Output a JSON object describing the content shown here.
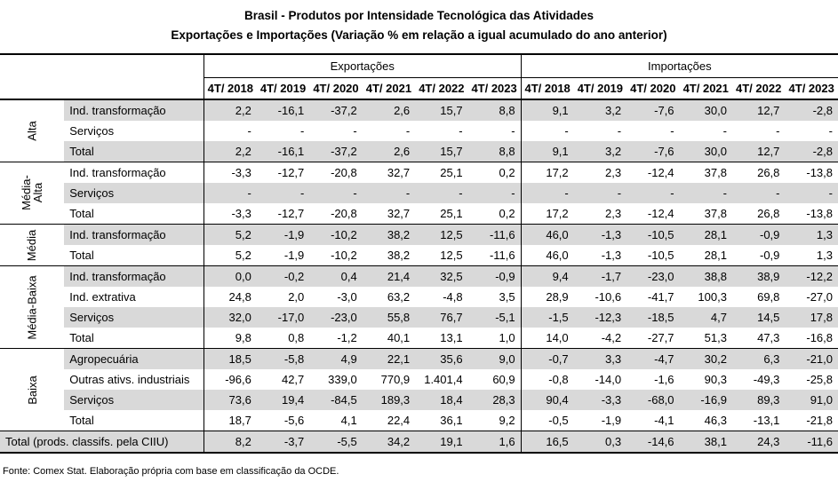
{
  "title": "Brasil - Produtos por Intensidade Tecnológica das Atividades",
  "subtitle": "Exportações e Importações (Variação % em relação a igual acumulado do ano anterior)",
  "headers": {
    "exports": "Exportações",
    "imports": "Importações",
    "years": [
      "4T/ 2018",
      "4T/ 2019",
      "4T/ 2020",
      "4T/ 2021",
      "4T/ 2022",
      "4T/ 2023"
    ]
  },
  "groups": [
    {
      "name": "Alta",
      "rows": [
        {
          "label": "Ind. transformação",
          "shade": true,
          "exp": [
            "2,2",
            "-16,1",
            "-37,2",
            "2,6",
            "15,7",
            "8,8"
          ],
          "imp": [
            "9,1",
            "3,2",
            "-7,6",
            "30,0",
            "12,7",
            "-2,8"
          ]
        },
        {
          "label": "Serviços",
          "shade": false,
          "exp": [
            "-",
            "-",
            "-",
            "-",
            "-",
            "-"
          ],
          "imp": [
            "-",
            "-",
            "-",
            "-",
            "-",
            "-"
          ]
        },
        {
          "label": "Total",
          "shade": true,
          "exp": [
            "2,2",
            "-16,1",
            "-37,2",
            "2,6",
            "15,7",
            "8,8"
          ],
          "imp": [
            "9,1",
            "3,2",
            "-7,6",
            "30,0",
            "12,7",
            "-2,8"
          ]
        }
      ]
    },
    {
      "name": "Média-Alta",
      "rows": [
        {
          "label": "Ind. transformação",
          "shade": false,
          "exp": [
            "-3,3",
            "-12,7",
            "-20,8",
            "32,7",
            "25,1",
            "0,2"
          ],
          "imp": [
            "17,2",
            "2,3",
            "-12,4",
            "37,8",
            "26,8",
            "-13,8"
          ]
        },
        {
          "label": "Serviços",
          "shade": true,
          "exp": [
            "-",
            "-",
            "-",
            "-",
            "-",
            "-"
          ],
          "imp": [
            "-",
            "-",
            "-",
            "-",
            "-",
            "-"
          ]
        },
        {
          "label": "Total",
          "shade": false,
          "exp": [
            "-3,3",
            "-12,7",
            "-20,8",
            "32,7",
            "25,1",
            "0,2"
          ],
          "imp": [
            "17,2",
            "2,3",
            "-12,4",
            "37,8",
            "26,8",
            "-13,8"
          ]
        }
      ]
    },
    {
      "name": "Média",
      "rows": [
        {
          "label": "Ind. transformação",
          "shade": true,
          "exp": [
            "5,2",
            "-1,9",
            "-10,2",
            "38,2",
            "12,5",
            "-11,6"
          ],
          "imp": [
            "46,0",
            "-1,3",
            "-10,5",
            "28,1",
            "-0,9",
            "1,3"
          ]
        },
        {
          "label": "Total",
          "shade": false,
          "exp": [
            "5,2",
            "-1,9",
            "-10,2",
            "38,2",
            "12,5",
            "-11,6"
          ],
          "imp": [
            "46,0",
            "-1,3",
            "-10,5",
            "28,1",
            "-0,9",
            "1,3"
          ]
        }
      ]
    },
    {
      "name": "Média-Baixa",
      "rows": [
        {
          "label": "Ind. transformação",
          "shade": true,
          "exp": [
            "0,0",
            "-0,2",
            "0,4",
            "21,4",
            "32,5",
            "-0,9"
          ],
          "imp": [
            "9,4",
            "-1,7",
            "-23,0",
            "38,8",
            "38,9",
            "-12,2"
          ]
        },
        {
          "label": "Ind. extrativa",
          "shade": false,
          "exp": [
            "24,8",
            "2,0",
            "-3,0",
            "63,2",
            "-4,8",
            "3,5"
          ],
          "imp": [
            "28,9",
            "-10,6",
            "-41,7",
            "100,3",
            "69,8",
            "-27,0"
          ]
        },
        {
          "label": "Serviços",
          "shade": true,
          "exp": [
            "32,0",
            "-17,0",
            "-23,0",
            "55,8",
            "76,7",
            "-5,1"
          ],
          "imp": [
            "-1,5",
            "-12,3",
            "-18,5",
            "4,7",
            "14,5",
            "17,8"
          ]
        },
        {
          "label": "Total",
          "shade": false,
          "exp": [
            "9,8",
            "0,8",
            "-1,2",
            "40,1",
            "13,1",
            "1,0"
          ],
          "imp": [
            "14,0",
            "-4,2",
            "-27,7",
            "51,3",
            "47,3",
            "-16,8"
          ]
        }
      ]
    },
    {
      "name": "Baixa",
      "rows": [
        {
          "label": "Agropecuária",
          "shade": true,
          "exp": [
            "18,5",
            "-5,8",
            "4,9",
            "22,1",
            "35,6",
            "9,0"
          ],
          "imp": [
            "-0,7",
            "3,3",
            "-4,7",
            "30,2",
            "6,3",
            "-21,0"
          ]
        },
        {
          "label": "Outras ativs. industriais",
          "shade": false,
          "exp": [
            "-96,6",
            "42,7",
            "339,0",
            "770,9",
            "1.401,4",
            "60,9"
          ],
          "imp": [
            "-0,8",
            "-14,0",
            "-1,6",
            "90,3",
            "-49,3",
            "-25,8"
          ]
        },
        {
          "label": "Serviços",
          "shade": true,
          "exp": [
            "73,6",
            "19,4",
            "-84,5",
            "189,3",
            "18,4",
            "28,3"
          ],
          "imp": [
            "90,4",
            "-3,3",
            "-68,0",
            "-16,9",
            "89,3",
            "91,0"
          ]
        },
        {
          "label": "Total",
          "shade": false,
          "exp": [
            "18,7",
            "-5,6",
            "4,1",
            "22,4",
            "36,1",
            "9,2"
          ],
          "imp": [
            "-0,5",
            "-1,9",
            "-4,1",
            "46,3",
            "-13,1",
            "-21,8"
          ]
        }
      ]
    }
  ],
  "grand_total": {
    "label": "Total (prods. classifs. pela CIIU)",
    "shade": true,
    "exp": [
      "8,2",
      "-3,7",
      "-5,5",
      "34,2",
      "19,1",
      "1,6"
    ],
    "imp": [
      "16,5",
      "0,3",
      "-14,6",
      "38,1",
      "24,3",
      "-11,6"
    ]
  },
  "source": "Fonte: Comex Stat. Elaboração própria com base em classificação da OCDE."
}
